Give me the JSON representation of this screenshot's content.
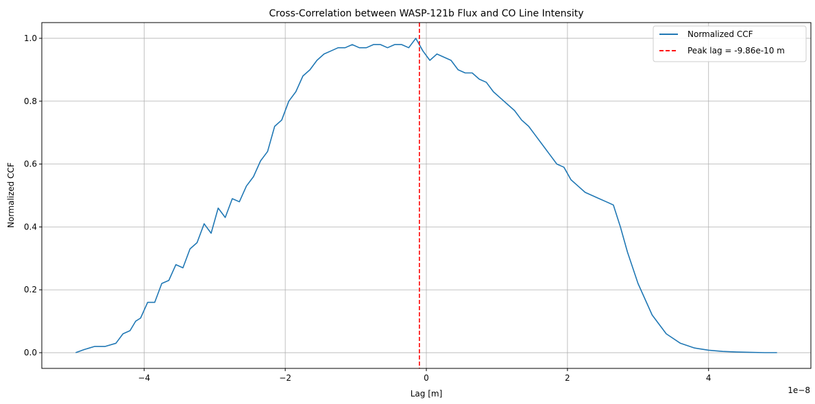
{
  "chart_data": {
    "type": "line",
    "title": "Cross-Correlation between WASP-121b Flux and CO Line Intensity",
    "xlabel": "Lag [m]",
    "ylabel": "Normalized CCF",
    "x_offset_label": "1e−8",
    "x_unit_scale": 1e-08,
    "xlim": [
      -5.45,
      5.45
    ],
    "ylim": [
      -0.05,
      1.05
    ],
    "x_ticks": [
      -4,
      -2,
      0,
      2,
      4
    ],
    "x_tick_labels": [
      "−4",
      "−2",
      "0",
      "2",
      "4"
    ],
    "y_ticks": [
      0.0,
      0.2,
      0.4,
      0.6,
      0.8,
      1.0
    ],
    "y_tick_labels": [
      "0.0",
      "0.2",
      "0.4",
      "0.6",
      "0.8",
      "1.0"
    ],
    "grid": true,
    "legend_position": "top-right",
    "series": [
      {
        "name": "Normalized CCF",
        "color": "#1f77b4",
        "style": "solid",
        "x": [
          -4.97,
          -4.85,
          -4.7,
          -4.55,
          -4.4,
          -4.3,
          -4.2,
          -4.12,
          -4.05,
          -3.95,
          -3.85,
          -3.75,
          -3.65,
          -3.55,
          -3.45,
          -3.35,
          -3.25,
          -3.15,
          -3.05,
          -2.95,
          -2.85,
          -2.75,
          -2.65,
          -2.55,
          -2.45,
          -2.35,
          -2.25,
          -2.15,
          -2.05,
          -1.95,
          -1.85,
          -1.75,
          -1.65,
          -1.55,
          -1.45,
          -1.35,
          -1.25,
          -1.15,
          -1.05,
          -0.95,
          -0.85,
          -0.75,
          -0.65,
          -0.55,
          -0.45,
          -0.35,
          -0.25,
          -0.15,
          -0.05,
          0.05,
          0.15,
          0.25,
          0.35,
          0.45,
          0.55,
          0.65,
          0.75,
          0.85,
          0.95,
          1.05,
          1.15,
          1.25,
          1.35,
          1.45,
          1.55,
          1.65,
          1.75,
          1.85,
          1.95,
          2.05,
          2.15,
          2.25,
          2.35,
          2.45,
          2.55,
          2.65,
          2.75,
          2.85,
          3.0,
          3.2,
          3.4,
          3.6,
          3.8,
          4.0,
          4.2,
          4.4,
          4.6,
          4.8,
          4.97
        ],
        "y": [
          0.0,
          0.01,
          0.02,
          0.02,
          0.03,
          0.06,
          0.07,
          0.1,
          0.11,
          0.16,
          0.16,
          0.22,
          0.23,
          0.28,
          0.27,
          0.33,
          0.35,
          0.41,
          0.38,
          0.46,
          0.43,
          0.49,
          0.48,
          0.53,
          0.56,
          0.61,
          0.64,
          0.72,
          0.74,
          0.8,
          0.83,
          0.88,
          0.9,
          0.93,
          0.95,
          0.96,
          0.97,
          0.97,
          0.98,
          0.97,
          0.97,
          0.98,
          0.98,
          0.97,
          0.98,
          0.98,
          0.97,
          1.0,
          0.96,
          0.93,
          0.95,
          0.94,
          0.93,
          0.9,
          0.89,
          0.89,
          0.87,
          0.86,
          0.83,
          0.81,
          0.79,
          0.77,
          0.74,
          0.72,
          0.69,
          0.66,
          0.63,
          0.6,
          0.59,
          0.55,
          0.53,
          0.51,
          0.5,
          0.49,
          0.48,
          0.47,
          0.4,
          0.32,
          0.22,
          0.12,
          0.06,
          0.03,
          0.015,
          0.008,
          0.004,
          0.002,
          0.001,
          0.0,
          0.0
        ]
      },
      {
        "name": "Peak lag = -9.86e-10 m",
        "color": "#ff0000",
        "style": "dashed",
        "type": "vline",
        "x": -0.0986
      }
    ]
  }
}
